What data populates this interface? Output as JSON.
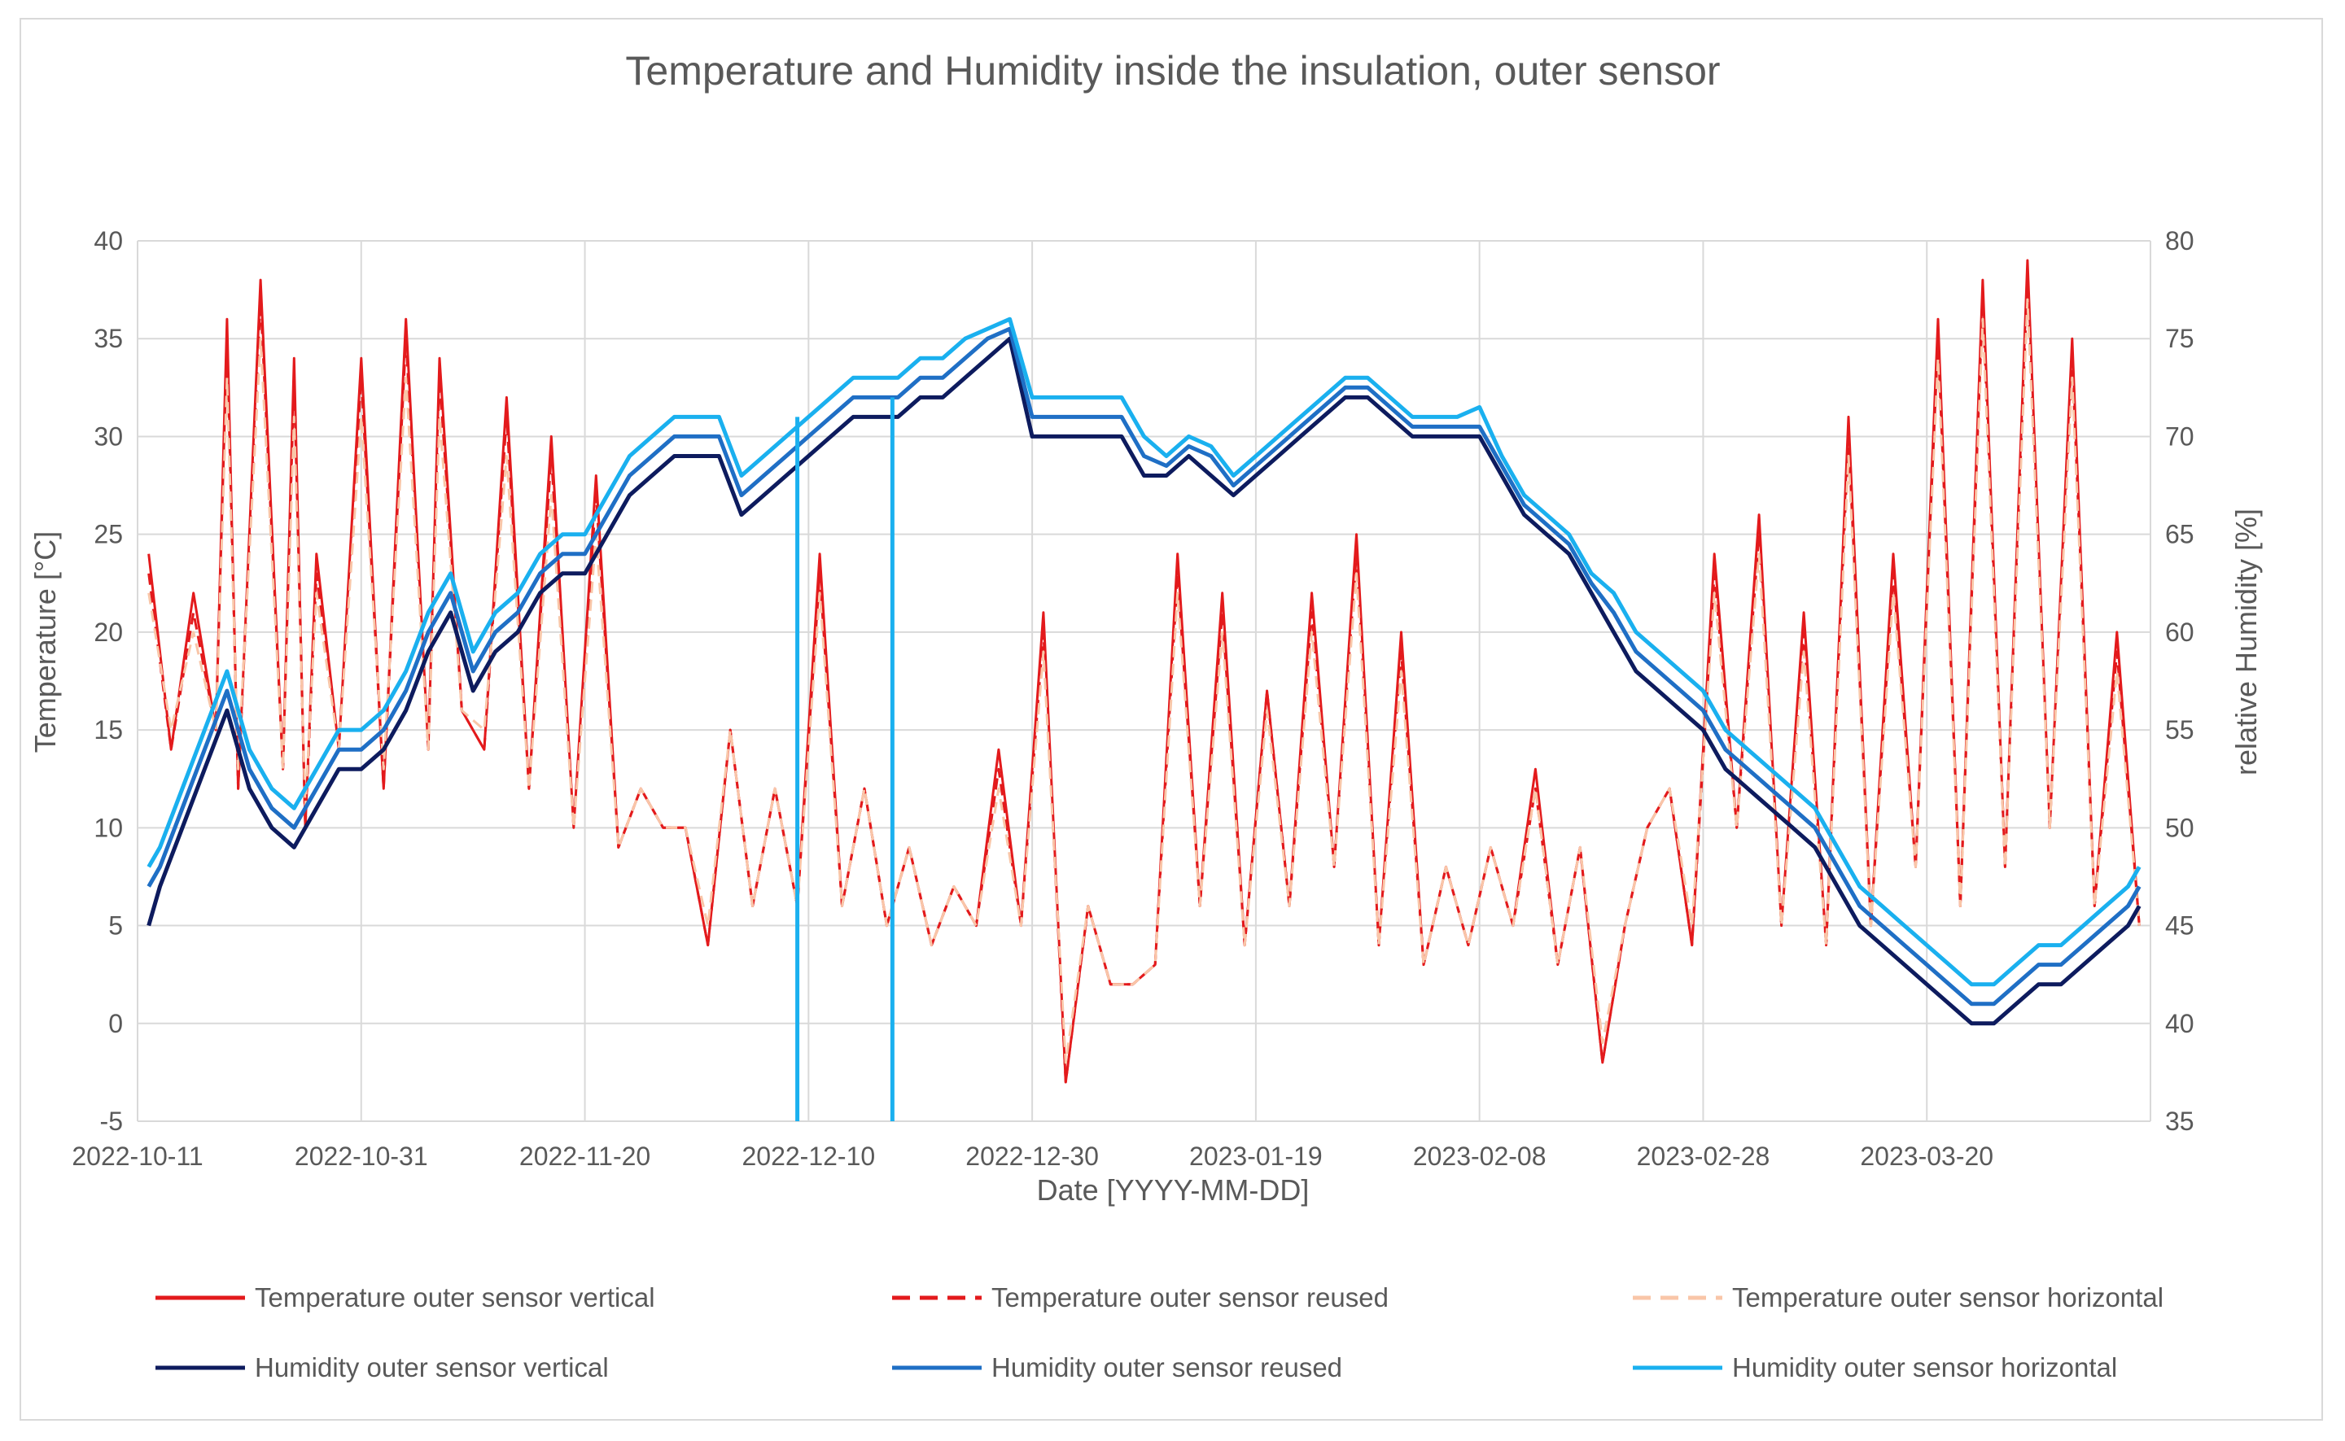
{
  "chart_data": {
    "type": "line",
    "title": "Temperature and Humidity inside the insulation, outer sensor",
    "xlabel": "Date [YYYY-MM-DD]",
    "ylabel_left": "Temperature [°C]",
    "ylabel_right": "relative Humidity [%]",
    "x_ticks": [
      "2022-10-11",
      "2022-10-31",
      "2022-11-20",
      "2022-12-10",
      "2022-12-30",
      "2023-01-19",
      "2023-02-08",
      "2023-02-28",
      "2023-03-20"
    ],
    "xlim_days": [
      0,
      180
    ],
    "ylim_left": [
      -5,
      40
    ],
    "ylim_right": [
      35,
      80
    ],
    "y_ticks_left": [
      -5,
      0,
      5,
      10,
      15,
      20,
      25,
      30,
      35,
      40
    ],
    "y_ticks_right": [
      35,
      40,
      45,
      50,
      55,
      60,
      65,
      70,
      75,
      80
    ],
    "grid": true,
    "legend_position": "bottom",
    "series": [
      {
        "name": "Temperature outer sensor vertical",
        "axis": "left",
        "color": "#e31a1c",
        "dash": "solid",
        "x": [
          1,
          3,
          5,
          7,
          8,
          9,
          11,
          13,
          14,
          15,
          16,
          18,
          20,
          22,
          24,
          26,
          27,
          29,
          31,
          33,
          35,
          37,
          39,
          41,
          43,
          45,
          47,
          49,
          51,
          53,
          55,
          57,
          59,
          61,
          63,
          65,
          67,
          69,
          71,
          73,
          75,
          77,
          79,
          81,
          83,
          85,
          87,
          89,
          91,
          93,
          95,
          97,
          99,
          101,
          103,
          105,
          107,
          109,
          111,
          113,
          115,
          117,
          119,
          121,
          123,
          125,
          127,
          129,
          131,
          133,
          135,
          137,
          139,
          141,
          143,
          145,
          147,
          149,
          151,
          153,
          155,
          157,
          159,
          161,
          163,
          165,
          167,
          169,
          171,
          173,
          175,
          177,
          179
        ],
        "y": [
          24,
          14,
          22,
          15,
          36,
          12,
          38,
          13,
          34,
          10,
          24,
          14,
          34,
          12,
          36,
          14,
          34,
          16,
          14,
          32,
          12,
          30,
          10,
          28,
          9,
          12,
          10,
          10,
          4,
          15,
          6,
          12,
          6,
          24,
          6,
          12,
          5,
          9,
          4,
          7,
          5,
          14,
          5,
          21,
          -3,
          6,
          2,
          2,
          3,
          24,
          6,
          22,
          4,
          17,
          6,
          22,
          8,
          25,
          4,
          20,
          3,
          8,
          4,
          9,
          5,
          13,
          3,
          9,
          -2,
          5,
          10,
          12,
          4,
          24,
          10,
          26,
          5,
          21,
          4,
          31,
          5,
          24,
          8,
          36,
          6,
          38,
          8,
          39,
          10,
          35,
          6,
          20,
          5
        ]
      },
      {
        "name": "Temperature outer sensor reused",
        "axis": "left",
        "color": "#e31a1c",
        "dash": "dashed",
        "x": [
          1,
          3,
          5,
          7,
          8,
          9,
          11,
          13,
          14,
          15,
          16,
          18,
          20,
          22,
          24,
          26,
          27,
          29,
          31,
          33,
          35,
          37,
          39,
          41,
          43,
          45,
          47,
          49,
          51,
          53,
          55,
          57,
          59,
          61,
          63,
          65,
          67,
          69,
          71,
          73,
          75,
          77,
          79,
          81,
          83,
          85,
          87,
          89,
          91,
          93,
          95,
          97,
          99,
          101,
          103,
          105,
          107,
          109,
          111,
          113,
          115,
          117,
          119,
          121,
          123,
          125,
          127,
          129,
          131,
          133,
          135,
          137,
          139,
          141,
          143,
          145,
          147,
          149,
          151,
          153,
          155,
          157,
          159,
          161,
          163,
          165,
          167,
          169,
          171,
          173,
          175,
          177,
          179
        ],
        "y": [
          23,
          14,
          21,
          15,
          35,
          12,
          37,
          13,
          33,
          10,
          23,
          14,
          33,
          12,
          35,
          14,
          33,
          16,
          14,
          31,
          12,
          29,
          10,
          27,
          9,
          12,
          10,
          10,
          4,
          15,
          6,
          12,
          6,
          23,
          6,
          12,
          5,
          9,
          4,
          7,
          5,
          13,
          5,
          20,
          -3,
          6,
          2,
          2,
          3,
          23,
          6,
          21,
          4,
          17,
          6,
          21,
          8,
          24,
          4,
          19,
          3,
          8,
          4,
          9,
          5,
          12,
          3,
          9,
          -2,
          5,
          10,
          12,
          4,
          23,
          10,
          25,
          5,
          20,
          4,
          30,
          5,
          23,
          8,
          35,
          6,
          37,
          8,
          38,
          10,
          34,
          6,
          19,
          5
        ]
      },
      {
        "name": "Temperature outer sensor horizontal",
        "axis": "left",
        "color": "#f9c6a8",
        "dash": "dashed",
        "x": [
          1,
          3,
          5,
          7,
          8,
          9,
          11,
          13,
          14,
          15,
          16,
          18,
          20,
          22,
          24,
          26,
          27,
          29,
          31,
          33,
          35,
          37,
          39,
          41,
          43,
          45,
          47,
          49,
          51,
          53,
          55,
          57,
          59,
          61,
          63,
          65,
          67,
          69,
          71,
          73,
          75,
          77,
          79,
          81,
          83,
          85,
          87,
          89,
          91,
          93,
          95,
          97,
          99,
          101,
          103,
          105,
          107,
          109,
          111,
          113,
          115,
          117,
          119,
          121,
          123,
          125,
          127,
          129,
          131,
          133,
          135,
          137,
          139,
          141,
          143,
          145,
          147,
          149,
          151,
          153,
          155,
          157,
          159,
          161,
          163,
          165,
          167,
          169,
          171,
          173,
          175,
          177,
          179
        ],
        "y": [
          22,
          15,
          20,
          15,
          33,
          13,
          35,
          13,
          31,
          11,
          22,
          14,
          31,
          13,
          33,
          14,
          31,
          16,
          15,
          29,
          12,
          27,
          10,
          25,
          9,
          12,
          10,
          10,
          5,
          15,
          6,
          12,
          6,
          22,
          6,
          12,
          5,
          9,
          4,
          7,
          5,
          12,
          5,
          19,
          -2,
          6,
          2,
          2,
          3,
          22,
          6,
          20,
          4,
          16,
          6,
          20,
          8,
          23,
          4,
          18,
          3,
          8,
          4,
          9,
          5,
          12,
          3,
          9,
          -1,
          5,
          10,
          12,
          5,
          22,
          10,
          24,
          5,
          19,
          4,
          29,
          5,
          22,
          8,
          34,
          6,
          36,
          8,
          37,
          10,
          33,
          6,
          18,
          5
        ]
      },
      {
        "name": "Humidity outer sensor vertical",
        "axis": "right",
        "color": "#0d1b5e",
        "dash": "solid",
        "x": [
          1,
          2,
          4,
          6,
          8,
          10,
          12,
          14,
          16,
          18,
          20,
          22,
          24,
          26,
          28,
          30,
          32,
          34,
          36,
          38,
          40,
          42,
          44,
          46,
          48,
          50,
          52,
          54,
          56,
          58,
          60,
          62,
          64,
          66,
          68,
          70,
          72,
          74,
          76,
          78,
          80,
          82,
          84,
          86,
          88,
          90,
          92,
          94,
          96,
          98,
          100,
          102,
          104,
          106,
          108,
          110,
          112,
          114,
          116,
          118,
          120,
          122,
          124,
          126,
          128,
          130,
          132,
          134,
          136,
          138,
          140,
          142,
          144,
          146,
          148,
          150,
          152,
          154,
          156,
          158,
          160,
          162,
          164,
          166,
          168,
          170,
          172,
          174,
          176,
          178,
          179
        ],
        "y": [
          45,
          47,
          50,
          53,
          56,
          52,
          50,
          49,
          51,
          53,
          53,
          54,
          56,
          59,
          61,
          57,
          59,
          60,
          62,
          63,
          63,
          65,
          67,
          68,
          69,
          69,
          69,
          66,
          67,
          68,
          69,
          70,
          71,
          71,
          71,
          72,
          72,
          73,
          74,
          75,
          70,
          70,
          70,
          70,
          70,
          68,
          68,
          69,
          68,
          67,
          68,
          69,
          70,
          71,
          72,
          72,
          71,
          70,
          70,
          70,
          70,
          68,
          66,
          65,
          64,
          62,
          60,
          58,
          57,
          56,
          55,
          53,
          52,
          51,
          50,
          49,
          47,
          45,
          44,
          43,
          42,
          41,
          40,
          40,
          41,
          42,
          42,
          43,
          44,
          45,
          46
        ]
      },
      {
        "name": "Humidity outer sensor reused",
        "axis": "right",
        "color": "#1f6fc5",
        "dash": "solid",
        "x": [
          1,
          2,
          4,
          6,
          8,
          10,
          12,
          14,
          16,
          18,
          20,
          22,
          24,
          26,
          28,
          30,
          32,
          34,
          36,
          38,
          40,
          42,
          44,
          46,
          48,
          50,
          52,
          54,
          56,
          58,
          60,
          62,
          64,
          66,
          68,
          70,
          72,
          74,
          76,
          78,
          80,
          82,
          84,
          86,
          88,
          90,
          92,
          94,
          96,
          98,
          100,
          102,
          104,
          106,
          108,
          110,
          112,
          114,
          116,
          118,
          120,
          122,
          124,
          126,
          128,
          130,
          132,
          134,
          136,
          138,
          140,
          142,
          144,
          146,
          148,
          150,
          152,
          154,
          156,
          158,
          160,
          162,
          164,
          166,
          168,
          170,
          172,
          174,
          176,
          178,
          179
        ],
        "y": [
          47,
          48,
          51,
          54,
          57,
          53,
          51,
          50,
          52,
          54,
          54,
          55,
          57,
          60,
          62,
          58,
          60,
          61,
          63,
          64,
          64,
          66,
          68,
          69,
          70,
          70,
          70,
          67,
          68,
          69,
          70,
          71,
          72,
          72,
          72,
          73,
          73,
          74,
          75,
          75.5,
          71,
          71,
          71,
          71,
          71,
          69,
          68.5,
          69.5,
          69,
          67.5,
          68.5,
          69.5,
          70.5,
          71.5,
          72.5,
          72.5,
          71.5,
          70.5,
          70.5,
          70.5,
          70.5,
          68.5,
          66.5,
          65.5,
          64.5,
          62.5,
          61,
          59,
          58,
          57,
          56,
          54,
          53,
          52,
          51,
          50,
          48,
          46,
          45,
          44,
          43,
          42,
          41,
          41,
          42,
          43,
          43,
          44,
          45,
          46,
          47
        ]
      },
      {
        "name": "Humidity outer sensor horizontal",
        "axis": "right",
        "color": "#1ab0ef",
        "dash": "solid",
        "x": [
          1,
          2,
          4,
          6,
          8,
          10,
          12,
          14,
          16,
          18,
          20,
          22,
          24,
          26,
          28,
          30,
          32,
          34,
          36,
          38,
          40,
          42,
          44,
          46,
          48,
          50,
          52,
          54,
          56,
          58,
          60,
          62,
          64,
          66,
          68,
          70,
          72,
          74,
          76,
          78,
          80,
          82,
          84,
          86,
          88,
          90,
          92,
          94,
          96,
          98,
          100,
          102,
          104,
          106,
          108,
          110,
          112,
          114,
          116,
          118,
          120,
          122,
          124,
          126,
          128,
          130,
          132,
          134,
          136,
          138,
          140,
          142,
          144,
          146,
          148,
          150,
          152,
          154,
          156,
          158,
          160,
          162,
          164,
          166,
          168,
          170,
          172,
          174,
          176,
          178,
          179
        ],
        "y": [
          48,
          49,
          52,
          55,
          58,
          54,
          52,
          51,
          53,
          55,
          55,
          56,
          58,
          61,
          63,
          59,
          61,
          62,
          64,
          65,
          65,
          67,
          69,
          70,
          71,
          71,
          71,
          68,
          69,
          70,
          71,
          72,
          73,
          73,
          73,
          74,
          74,
          75,
          75.5,
          76,
          72,
          72,
          72,
          72,
          72,
          70,
          69,
          70,
          69.5,
          68,
          69,
          70,
          71,
          72,
          73,
          73,
          72,
          71,
          71,
          71,
          71.5,
          69,
          67,
          66,
          65,
          63,
          62,
          60,
          59,
          58,
          57,
          55,
          54,
          53,
          52,
          51,
          49,
          47,
          46,
          45,
          44,
          43,
          42,
          42,
          43,
          44,
          44,
          45,
          46,
          47,
          48
        ]
      }
    ],
    "spikes_right": [
      {
        "series": "Humidity outer sensor horizontal",
        "x": 59,
        "y_from": 71,
        "y_to": 35
      },
      {
        "series": "Humidity outer sensor horizontal",
        "x": 67.5,
        "y_from": 72,
        "y_to": 35
      }
    ]
  }
}
